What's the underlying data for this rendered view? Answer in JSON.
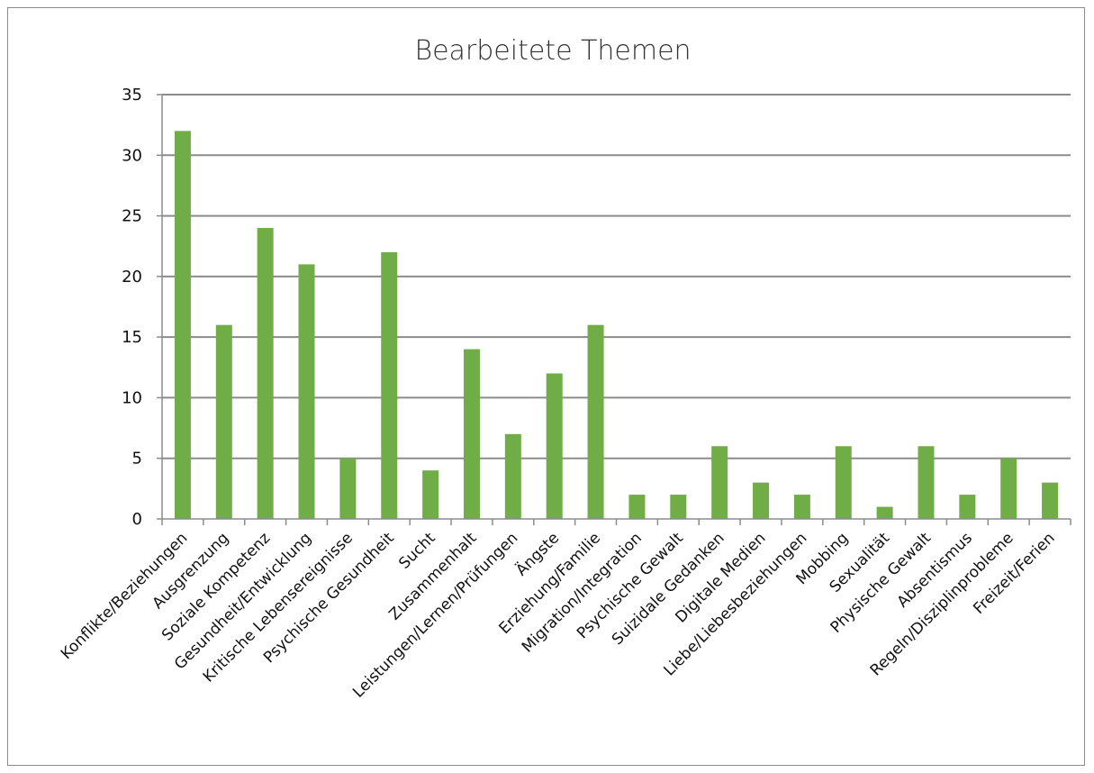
{
  "chart_data": {
    "type": "bar",
    "title": "Bearbeitete Themen",
    "xlabel": "",
    "ylabel": "",
    "ylim": [
      0,
      35
    ],
    "yticks": [
      0,
      5,
      10,
      15,
      20,
      25,
      30,
      35
    ],
    "grid": true,
    "legend": "none",
    "bar_color": "#70ad47",
    "categories": [
      "Konflikte/Beziehungen",
      "Ausgrenzung",
      "Soziale Kompetenz",
      "Gesundheit/Entwicklung",
      "Kritische Lebensereignisse",
      "Psychische Gesundheit",
      "Sucht",
      "Zusammenhalt",
      "Leistungen/Lernen/Prüfungen",
      "Ängste",
      "Erziehung/Familie",
      "Migration/Integration",
      "Psychische Gewalt",
      "Suizidale Gedanken",
      "Digitale Medien",
      "Liebe/Liebesbeziehungen",
      "Mobbing",
      "Sexualität",
      "Physische Gewalt",
      "Absentismus",
      "Regeln/Disziplinprobleme",
      "Freizeit/Ferien"
    ],
    "values": [
      32,
      16,
      24,
      21,
      5,
      22,
      4,
      14,
      7,
      12,
      16,
      2,
      2,
      6,
      3,
      2,
      6,
      1,
      6,
      2,
      5,
      3
    ]
  }
}
